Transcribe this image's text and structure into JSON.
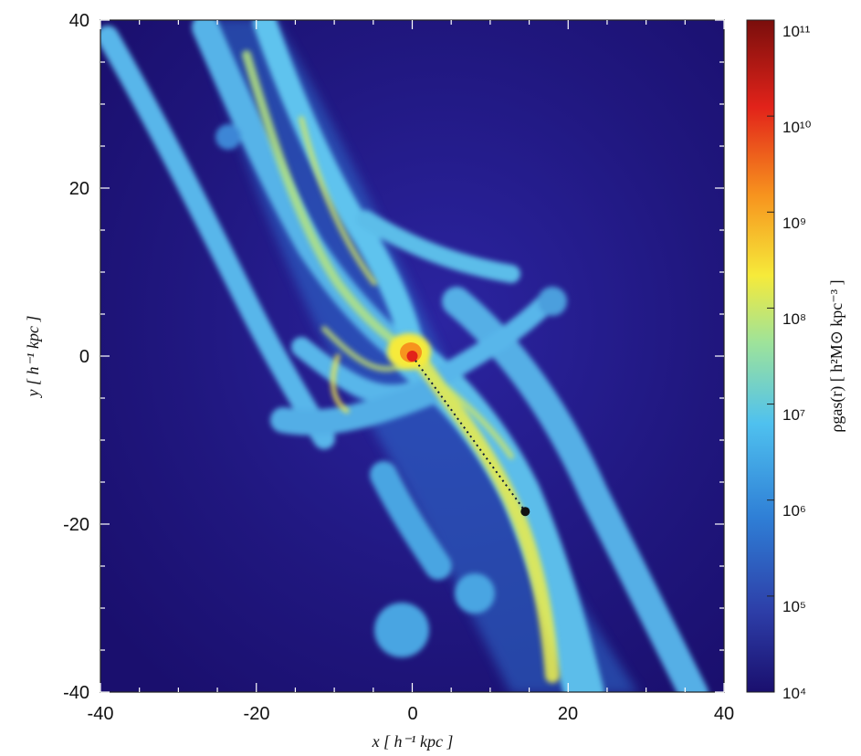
{
  "chart_data": {
    "type": "heatmap",
    "title": "",
    "xlabel": "x [ h⁻¹ kpc ]",
    "ylabel": "y [ h⁻¹ kpc ]",
    "xlim": [
      -40,
      40
    ],
    "ylim": [
      -40,
      40
    ],
    "x_ticks": [
      "-40",
      "-20",
      "0",
      "20",
      "40"
    ],
    "y_ticks": [
      "40",
      "20",
      "0",
      "-20",
      "-40"
    ],
    "colorbar": {
      "label": "ρgas(r) [ h²M⊙ kpc⁻³ ]",
      "scale": "log",
      "range": [
        10000.0,
        100000000000.0
      ],
      "tick_labels": [
        "10¹¹",
        "10¹⁰",
        "10⁹",
        "10⁸",
        "10⁷",
        "10⁶",
        "10⁵",
        "10⁴"
      ],
      "colors": [
        "#1a0f6e",
        "#2d3ea8",
        "#2f7fd6",
        "#4fc1ef",
        "#9ee39a",
        "#f6ea3a",
        "#f7931e",
        "#e2231a",
        "#7a0e0c"
      ]
    },
    "points": [
      {
        "x": 0,
        "y": 0,
        "color": "#e2231a"
      },
      {
        "x": 14.5,
        "y": -18.5,
        "color": "#111111"
      }
    ],
    "trajectory": {
      "from": [
        0,
        0
      ],
      "to": [
        14.5,
        -18.5
      ],
      "style": "dotted"
    }
  }
}
